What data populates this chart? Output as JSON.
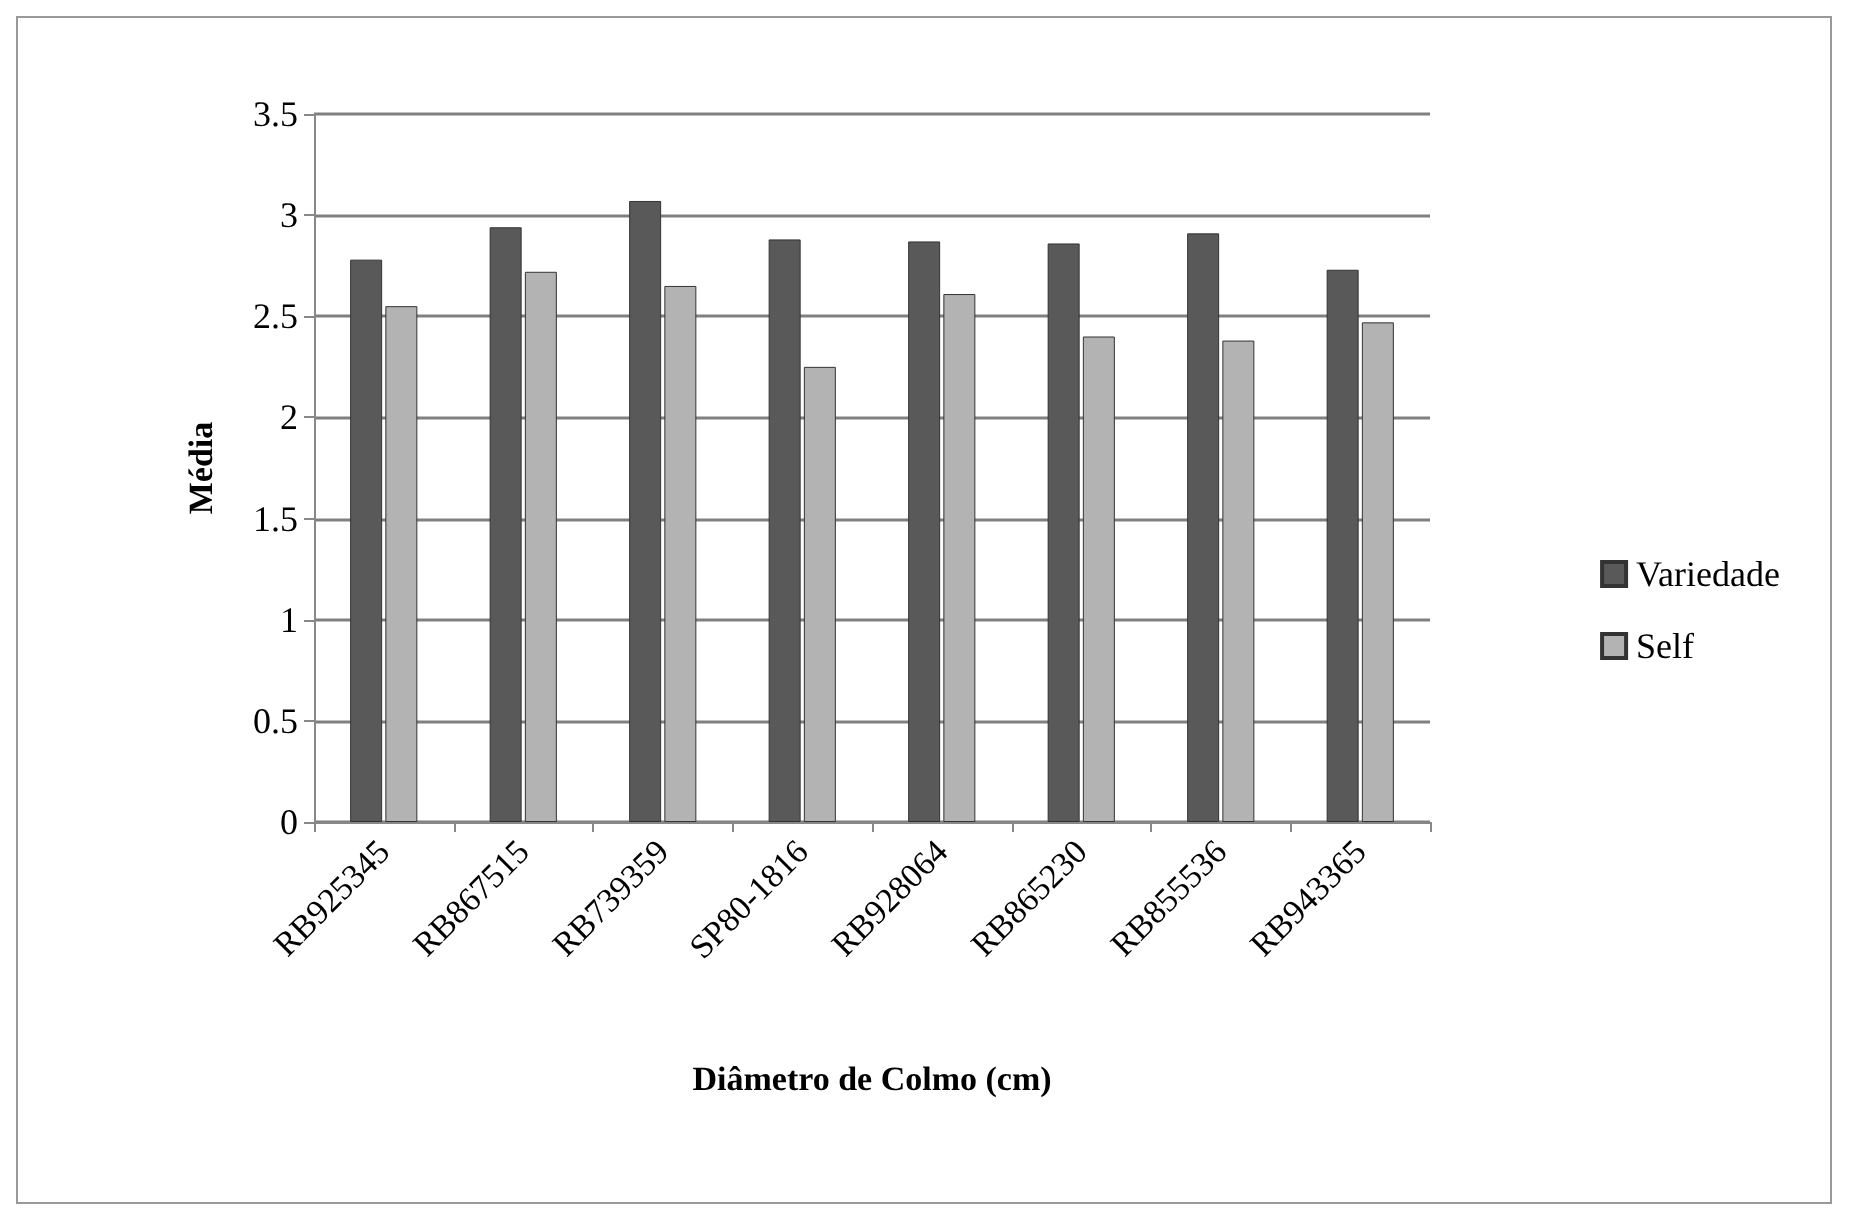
{
  "chart_data": {
    "type": "bar",
    "xlabel": "Diâmetro de Colmo (cm)",
    "ylabel": "Média",
    "categories": [
      "RB925345",
      "RB867515",
      "RB739359",
      "SP80-1816",
      "RB928064",
      "RB865230",
      "RB855536",
      "RB943365"
    ],
    "series": [
      {
        "name": "Variedade",
        "color": "#595959",
        "values": [
          2.78,
          2.94,
          3.07,
          2.88,
          2.87,
          2.86,
          2.91,
          2.73
        ]
      },
      {
        "name": "Self",
        "color": "#b3b3b3",
        "values": [
          2.55,
          2.72,
          2.65,
          2.25,
          2.61,
          2.4,
          2.38,
          2.47
        ]
      }
    ],
    "ylim": [
      0,
      3.5
    ],
    "yticks": [
      0,
      0.5,
      1,
      1.5,
      2,
      2.5,
      3,
      3.5
    ],
    "grid": "y",
    "legend": "right"
  }
}
